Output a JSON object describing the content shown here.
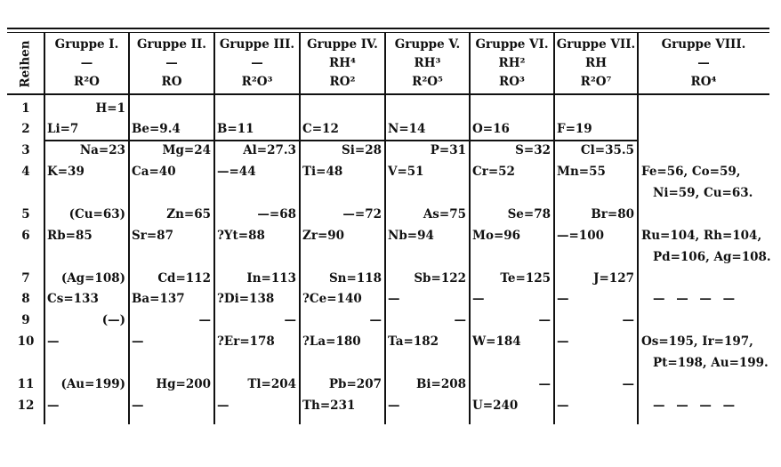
{
  "row_header": "Reihen",
  "groups": [
    {
      "name": "Gruppe I.",
      "hydride": "—",
      "oxide": "R²O"
    },
    {
      "name": "Gruppe II.",
      "hydride": "—",
      "oxide": "RO"
    },
    {
      "name": "Gruppe III.",
      "hydride": "—",
      "oxide": "R²O³"
    },
    {
      "name": "Gruppe IV.",
      "hydride": "RH⁴",
      "oxide": "RO²"
    },
    {
      "name": "Gruppe V.",
      "hydride": "RH³",
      "oxide": "R²O⁵"
    },
    {
      "name": "Gruppe VI.",
      "hydride": "RH²",
      "oxide": "RO³"
    },
    {
      "name": "Gruppe VII.",
      "hydride": "RH",
      "oxide": "R²O⁷"
    },
    {
      "name": "Gruppe VIII.",
      "hydride": "—",
      "oxide": "RO⁴"
    }
  ],
  "rows": [
    {
      "num": "1",
      "cells": [
        "H=1",
        "",
        "",
        "",
        "",
        "",
        ""
      ],
      "group8": []
    },
    {
      "num": "2",
      "cells": [
        "Li=7",
        "Be=9.4",
        "B=11",
        "C=12",
        "N=14",
        "O=16",
        "F=19"
      ],
      "group8": []
    },
    {
      "num": "3",
      "cells": [
        "Na=23",
        "Mg=24",
        "Al=27.3",
        "Si=28",
        "P=31",
        "S=32",
        "Cl=35.5"
      ],
      "group8": []
    },
    {
      "num": "4",
      "cells": [
        "K=39",
        "Ca=40",
        "—=44",
        "Ti=48",
        "V=51",
        "Cr=52",
        "Mn=55"
      ],
      "group8": [
        "Fe=56, Co=59,",
        "Ni=59, Cu=63."
      ]
    },
    {
      "num": "5",
      "cells": [
        "(Cu=63)",
        "Zn=65",
        "—=68",
        "—=72",
        "As=75",
        "Se=78",
        "Br=80"
      ],
      "group8": []
    },
    {
      "num": "6",
      "cells": [
        "Rb=85",
        "Sr=87",
        "?Yt=88",
        "Zr=90",
        "Nb=94",
        "Mo=96",
        "—=100"
      ],
      "group8": [
        "Ru=104, Rh=104,",
        "Pd=106, Ag=108."
      ]
    },
    {
      "num": "7",
      "cells": [
        "(Ag=108)",
        "Cd=112",
        "In=113",
        "Sn=118",
        "Sb=122",
        "Te=125",
        "J=127"
      ],
      "group8": []
    },
    {
      "num": "8",
      "cells": [
        "Cs=133",
        "Ba=137",
        "?Di=138",
        "?Ce=140",
        "—",
        "—",
        "—"
      ],
      "group8": [
        "— — — —"
      ]
    },
    {
      "num": "9",
      "cells": [
        "(—)",
        "—",
        "—",
        "—",
        "—",
        "—",
        "—"
      ],
      "group8": []
    },
    {
      "num": "10",
      "cells": [
        "—",
        "—",
        "?Er=178",
        "?La=180",
        "Ta=182",
        "W=184",
        "—"
      ],
      "group8": [
        "Os=195, Ir=197,",
        "Pt=198, Au=199."
      ]
    },
    {
      "num": "11",
      "cells": [
        "(Au=199)",
        "Hg=200",
        "Tl=204",
        "Pb=207",
        "Bi=208",
        "—",
        "—"
      ],
      "group8": []
    },
    {
      "num": "12",
      "cells": [
        "—",
        "—",
        "—",
        "Th=231",
        "—",
        "U=240",
        "—"
      ],
      "group8": [
        "— — — —"
      ]
    }
  ]
}
